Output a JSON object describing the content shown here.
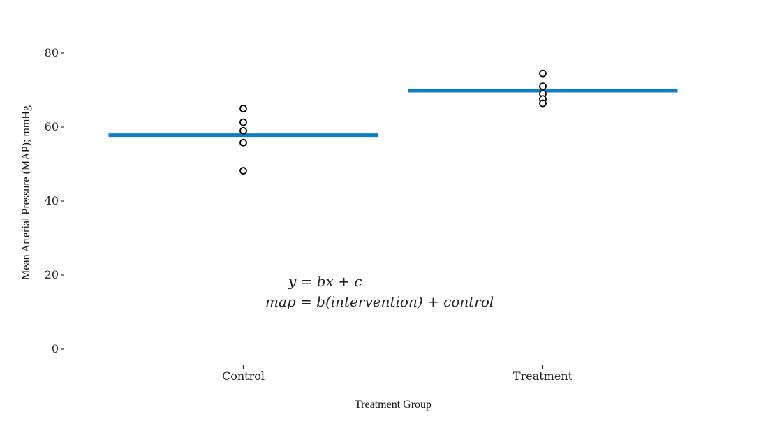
{
  "chart_data": {
    "type": "scatter",
    "categories": [
      "Control",
      "Treatment"
    ],
    "xlabel": "Treatment Group",
    "ylabel": "Mean Arterial Pressure (MAP); mmHg",
    "ylim": [
      0,
      85
    ],
    "yticks": [
      "0",
      "20",
      "40",
      "60",
      "80"
    ],
    "grid": false,
    "points": [
      {
        "category": "Control",
        "values": [
          65,
          61.3,
          59,
          55.8,
          48.2
        ]
      },
      {
        "category": "Treatment",
        "values": [
          74.5,
          71,
          69,
          67.6,
          66.4
        ]
      }
    ],
    "means": [
      {
        "category": "Control",
        "value": 57.8
      },
      {
        "category": "Treatment",
        "value": 69.8
      }
    ],
    "mean_line_color": "#0a7fc4",
    "annotation_lines": [
      "y = bx + c",
      "map = b(intervention) + control"
    ]
  }
}
